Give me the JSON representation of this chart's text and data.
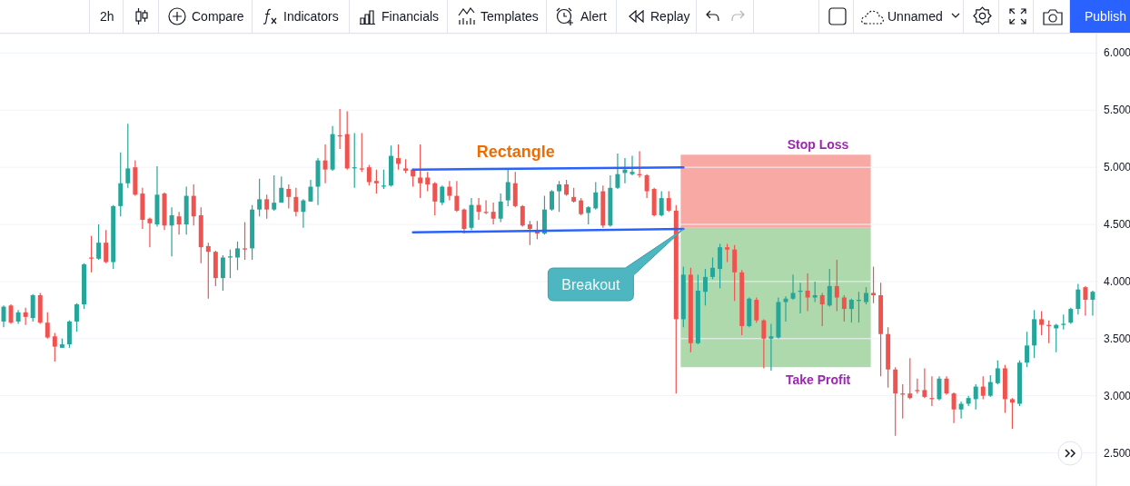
{
  "chart_data": {
    "type": "candlestick",
    "categories": [
      null,
      null,
      null,
      null,
      null,
      null,
      null,
      null,
      null,
      null,
      null,
      null,
      null,
      null,
      null,
      null,
      null,
      null,
      null,
      null,
      null,
      null,
      null,
      null,
      null,
      null,
      null,
      null,
      null,
      null,
      null,
      null,
      null,
      null,
      null,
      null,
      null,
      null,
      null,
      null,
      null,
      null,
      null,
      null,
      null,
      null,
      null,
      null,
      null,
      null,
      null,
      null,
      null,
      null,
      null,
      null,
      null,
      null,
      null,
      null,
      null,
      null,
      null,
      null,
      null,
      null,
      null,
      null,
      null,
      null,
      null,
      null,
      null,
      null,
      null,
      null,
      null,
      null,
      null,
      null,
      null,
      null,
      null,
      null,
      null,
      null,
      null,
      null,
      null,
      null,
      null,
      null,
      null,
      null,
      null,
      null,
      null,
      null,
      null,
      null,
      null,
      null,
      null,
      null,
      null,
      null,
      null,
      null,
      null,
      null,
      null,
      null,
      null,
      null,
      null,
      null,
      null,
      null,
      null,
      null,
      null,
      null,
      null,
      null,
      null,
      null,
      null,
      null,
      null,
      null,
      null,
      null,
      null,
      null,
      null,
      null,
      null,
      null,
      null,
      null,
      null,
      null,
      null,
      null,
      null,
      null,
      null,
      null,
      null,
      null
    ],
    "ohlc": [
      [
        3.65,
        3.79,
        3.6,
        3.78
      ],
      [
        3.79,
        3.8,
        3.63,
        3.64
      ],
      [
        3.65,
        3.75,
        3.63,
        3.73
      ],
      [
        3.73,
        3.77,
        3.62,
        3.69
      ],
      [
        3.68,
        3.89,
        3.65,
        3.88
      ],
      [
        3.88,
        3.9,
        3.63,
        3.64
      ],
      [
        3.64,
        3.73,
        3.5,
        3.51
      ],
      [
        3.52,
        3.55,
        3.3,
        3.43
      ],
      [
        3.42,
        3.5,
        3.42,
        3.45
      ],
      [
        3.45,
        3.66,
        3.42,
        3.65
      ],
      [
        3.65,
        3.81,
        3.56,
        3.8
      ],
      [
        3.8,
        4.16,
        3.76,
        4.15
      ],
      [
        4.21,
        4.4,
        4.08,
        4.2
      ],
      [
        4.2,
        4.5,
        4.19,
        4.34
      ],
      [
        4.34,
        4.45,
        4.16,
        4.17
      ],
      [
        4.17,
        4.67,
        4.11,
        4.66
      ],
      [
        4.66,
        5.13,
        4.57,
        4.86
      ],
      [
        4.86,
        5.38,
        4.82,
        4.99
      ],
      [
        5.0,
        5.06,
        4.75,
        4.76
      ],
      [
        4.77,
        4.82,
        4.46,
        4.54
      ],
      [
        4.55,
        4.56,
        4.3,
        4.51
      ],
      [
        4.5,
        5.01,
        4.48,
        4.76
      ],
      [
        4.77,
        4.78,
        4.45,
        4.49
      ],
      [
        4.49,
        4.65,
        4.22,
        4.58
      ],
      [
        4.57,
        4.61,
        4.41,
        4.5
      ],
      [
        4.5,
        4.83,
        4.41,
        4.75
      ],
      [
        4.75,
        4.85,
        4.49,
        4.57
      ],
      [
        4.58,
        4.65,
        4.16,
        4.3
      ],
      [
        4.31,
        4.34,
        3.85,
        4.26
      ],
      [
        4.26,
        4.27,
        3.96,
        4.03
      ],
      [
        4.03,
        4.23,
        3.92,
        4.21
      ],
      [
        4.21,
        4.28,
        4.03,
        4.22
      ],
      [
        4.21,
        4.35,
        4.1,
        4.29
      ],
      [
        4.29,
        4.52,
        4.19,
        4.28
      ],
      [
        4.29,
        4.67,
        4.19,
        4.63
      ],
      [
        4.63,
        4.9,
        4.57,
        4.72
      ],
      [
        4.72,
        4.76,
        4.55,
        4.63
      ],
      [
        4.63,
        4.93,
        4.62,
        4.69
      ],
      [
        4.69,
        4.92,
        4.69,
        4.82
      ],
      [
        4.81,
        4.85,
        4.64,
        4.74
      ],
      [
        4.74,
        4.82,
        4.57,
        4.61
      ],
      [
        4.61,
        4.72,
        4.47,
        4.71
      ],
      [
        4.7,
        4.89,
        4.7,
        4.83
      ],
      [
        4.83,
        5.08,
        4.67,
        5.06
      ],
      [
        5.06,
        5.2,
        4.86,
        4.98
      ],
      [
        4.98,
        5.36,
        4.97,
        5.29
      ],
      [
        5.28,
        5.51,
        5.16,
        5.27
      ],
      [
        5.29,
        5.49,
        4.98,
        4.99
      ],
      [
        4.99,
        5.3,
        4.82,
        5.0
      ],
      [
        4.99,
        5.3,
        4.96,
        4.98
      ],
      [
        5.0,
        5.02,
        4.84,
        4.87
      ],
      [
        4.88,
        4.98,
        4.77,
        4.86
      ],
      [
        4.83,
        4.98,
        4.81,
        4.84
      ],
      [
        4.84,
        5.19,
        4.83,
        5.1
      ],
      [
        5.08,
        5.2,
        4.98,
        5.03
      ],
      [
        4.99,
        5.07,
        4.95,
        4.97
      ],
      [
        4.98,
        4.99,
        4.83,
        4.92
      ],
      [
        4.91,
        5.2,
        4.73,
        4.86
      ],
      [
        4.91,
        4.96,
        4.79,
        4.85
      ],
      [
        4.86,
        4.87,
        4.58,
        4.7
      ],
      [
        4.69,
        4.84,
        4.67,
        4.83
      ],
      [
        4.83,
        4.88,
        4.71,
        4.75
      ],
      [
        4.75,
        4.88,
        4.61,
        4.62
      ],
      [
        4.63,
        4.64,
        4.42,
        4.46
      ],
      [
        4.47,
        4.73,
        4.45,
        4.67
      ],
      [
        4.67,
        4.73,
        4.54,
        4.61
      ],
      [
        4.61,
        4.71,
        4.59,
        4.6
      ],
      [
        4.61,
        4.69,
        4.5,
        4.55
      ],
      [
        4.55,
        4.77,
        4.52,
        4.7
      ],
      [
        4.71,
        4.98,
        4.66,
        4.87
      ],
      [
        4.86,
        4.96,
        4.65,
        4.66
      ],
      [
        4.66,
        4.67,
        4.48,
        4.49
      ],
      [
        4.5,
        4.53,
        4.32,
        4.46
      ],
      [
        4.45,
        4.53,
        4.37,
        4.42
      ],
      [
        4.42,
        4.75,
        4.41,
        4.63
      ],
      [
        4.63,
        4.8,
        4.62,
        4.79
      ],
      [
        4.79,
        4.88,
        4.61,
        4.85
      ],
      [
        4.85,
        4.89,
        4.75,
        4.76
      ],
      [
        4.74,
        4.82,
        4.69,
        4.7
      ],
      [
        4.71,
        4.73,
        4.58,
        4.59
      ],
      [
        4.6,
        4.66,
        4.5,
        4.65
      ],
      [
        4.64,
        4.87,
        4.63,
        4.78
      ],
      [
        4.79,
        4.84,
        4.47,
        4.49
      ],
      [
        4.49,
        4.93,
        4.48,
        4.82
      ],
      [
        4.82,
        5.12,
        4.81,
        4.94
      ],
      [
        4.95,
        5.08,
        4.86,
        4.98
      ],
      [
        4.94,
        5.1,
        4.93,
        4.96
      ],
      [
        4.94,
        5.14,
        4.91,
        4.93
      ],
      [
        4.93,
        4.94,
        4.73,
        4.79
      ],
      [
        4.81,
        4.82,
        4.57,
        4.58
      ],
      [
        4.58,
        4.79,
        4.57,
        4.73
      ],
      [
        4.73,
        4.79,
        4.61,
        4.62
      ],
      [
        4.62,
        4.67,
        3.02,
        3.67
      ],
      [
        3.67,
        4.13,
        3.6,
        4.06
      ],
      [
        4.06,
        4.12,
        3.38,
        3.46
      ],
      [
        3.46,
        4.06,
        3.45,
        3.92
      ],
      [
        3.91,
        4.11,
        3.79,
        4.04
      ],
      [
        4.04,
        4.21,
        4.02,
        4.12
      ],
      [
        4.11,
        4.33,
        3.94,
        4.3
      ],
      [
        4.3,
        4.33,
        4.17,
        4.28
      ],
      [
        4.28,
        4.32,
        3.83,
        4.08
      ],
      [
        4.08,
        4.1,
        3.53,
        3.61
      ],
      [
        3.61,
        3.86,
        3.6,
        3.85
      ],
      [
        3.84,
        3.86,
        3.64,
        3.66
      ],
      [
        3.66,
        3.67,
        3.24,
        3.5
      ],
      [
        3.5,
        3.63,
        3.22,
        3.52
      ],
      [
        3.51,
        3.86,
        3.5,
        3.82
      ],
      [
        3.82,
        3.87,
        3.65,
        3.85
      ],
      [
        3.85,
        4.06,
        3.84,
        3.9
      ],
      [
        3.91,
        3.99,
        3.72,
        3.92
      ],
      [
        3.92,
        4.07,
        3.74,
        3.86
      ],
      [
        3.86,
        4.0,
        3.82,
        3.88
      ],
      [
        3.88,
        3.9,
        3.61,
        3.8
      ],
      [
        3.79,
        4.11,
        3.78,
        3.96
      ],
      [
        3.96,
        4.19,
        3.74,
        3.86
      ],
      [
        3.86,
        3.88,
        3.65,
        3.76
      ],
      [
        3.76,
        3.85,
        3.64,
        3.84
      ],
      [
        3.83,
        3.91,
        3.64,
        3.84
      ],
      [
        3.82,
        3.95,
        3.8,
        3.9
      ],
      [
        3.9,
        4.13,
        3.81,
        3.88
      ],
      [
        3.88,
        3.99,
        3.17,
        3.54
      ],
      [
        3.54,
        3.6,
        3.07,
        3.23
      ],
      [
        3.23,
        3.25,
        2.65,
        3.02
      ],
      [
        3.02,
        3.1,
        2.8,
        3.01
      ],
      [
        3.02,
        3.33,
        2.97,
        2.98
      ],
      [
        3.05,
        3.15,
        3.02,
        3.04
      ],
      [
        3.05,
        3.24,
        2.98,
        2.99
      ],
      [
        2.98,
        3.17,
        2.91,
        2.97
      ],
      [
        2.97,
        3.17,
        2.96,
        3.15
      ],
      [
        3.15,
        3.17,
        3.01,
        3.02
      ],
      [
        3.02,
        3.03,
        2.76,
        2.88
      ],
      [
        2.88,
        2.95,
        2.8,
        2.93
      ],
      [
        2.93,
        3.0,
        2.91,
        2.98
      ],
      [
        2.97,
        3.1,
        2.88,
        3.08
      ],
      [
        3.08,
        3.17,
        2.97,
        3.0
      ],
      [
        3.0,
        3.18,
        2.99,
        3.12
      ],
      [
        3.11,
        3.31,
        3.1,
        3.24
      ],
      [
        3.24,
        3.27,
        2.85,
        2.97
      ],
      [
        2.97,
        2.98,
        2.71,
        2.94
      ],
      [
        2.93,
        3.31,
        2.91,
        3.29
      ],
      [
        3.29,
        3.56,
        3.25,
        3.44
      ],
      [
        3.44,
        3.75,
        3.33,
        3.67
      ],
      [
        3.67,
        3.74,
        3.53,
        3.62
      ],
      [
        3.62,
        3.66,
        3.46,
        3.61
      ],
      [
        3.59,
        3.63,
        3.38,
        3.62
      ],
      [
        3.62,
        3.71,
        3.58,
        3.63
      ],
      [
        3.64,
        3.77,
        3.63,
        3.76
      ],
      [
        3.76,
        3.98,
        3.71,
        3.93
      ],
      [
        3.95,
        3.96,
        3.7,
        3.84
      ],
      [
        3.84,
        3.92,
        3.7,
        3.91
      ]
    ],
    "colors": [
      "#26a69a",
      "#ef5350",
      "#26a69a",
      "#ef5350",
      "#26a69a",
      "#ef5350",
      "#ef5350",
      "#ef5350",
      "#26a69a",
      "#26a69a",
      "#26a69a",
      "#26a69a",
      "#ef5350",
      "#26a69a",
      "#ef5350",
      "#26a69a",
      "#26a69a",
      "#26a69a",
      "#ef5350",
      "#ef5350",
      "#ef5350",
      "#26a69a",
      "#ef5350",
      "#26a69a",
      "#ef5350",
      "#26a69a",
      "#ef5350",
      "#ef5350",
      "#ef5350",
      "#ef5350",
      "#26a69a",
      "#26a69a",
      "#26a69a",
      "#ef5350",
      "#26a69a",
      "#26a69a",
      "#ef5350",
      "#26a69a",
      "#26a69a",
      "#ef5350",
      "#ef5350",
      "#26a69a",
      "#26a69a",
      "#26a69a",
      "#ef5350",
      "#26a69a",
      "#ef5350",
      "#ef5350",
      "#26a69a",
      "#ef5350",
      "#ef5350",
      "#ef5350",
      "#26a69a",
      "#26a69a",
      "#ef5350",
      "#ef5350",
      "#ef5350",
      "#ef5350",
      "#ef5350",
      "#ef5350",
      "#26a69a",
      "#ef5350",
      "#ef5350",
      "#ef5350",
      "#26a69a",
      "#ef5350",
      "#ef5350",
      "#ef5350",
      "#26a69a",
      "#26a69a",
      "#ef5350",
      "#ef5350",
      "#ef5350",
      "#ef5350",
      "#26a69a",
      "#26a69a",
      "#26a69a",
      "#ef5350",
      "#ef5350",
      "#ef5350",
      "#26a69a",
      "#26a69a",
      "#ef5350",
      "#26a69a",
      "#26a69a",
      "#26a69a",
      "#26a69a",
      "#ef5350",
      "#ef5350",
      "#ef5350",
      "#26a69a",
      "#ef5350",
      "#ef5350",
      "#26a69a",
      "#ef5350",
      "#26a69a",
      "#26a69a",
      "#26a69a",
      "#26a69a",
      "#ef5350",
      "#ef5350",
      "#ef5350",
      "#26a69a",
      "#ef5350",
      "#ef5350",
      "#26a69a",
      "#26a69a",
      "#26a69a",
      "#26a69a",
      "#26a69a",
      "#ef5350",
      "#26a69a",
      "#ef5350",
      "#26a69a",
      "#ef5350",
      "#ef5350",
      "#26a69a",
      "#26a69a",
      "#26a69a",
      "#ef5350",
      "#ef5350",
      "#ef5350",
      "#ef5350",
      "#ef5350",
      "#ef5350",
      "#ef5350",
      "#ef5350",
      "#ef5350",
      "#26a69a",
      "#ef5350",
      "#ef5350",
      "#26a69a",
      "#26a69a",
      "#26a69a",
      "#ef5350",
      "#26a69a",
      "#26a69a",
      "#ef5350",
      "#ef5350",
      "#26a69a",
      "#26a69a",
      "#26a69a",
      "#ef5350",
      "#ef5350",
      "#26a69a",
      "#26a69a",
      "#26a69a",
      "#26a69a",
      "#ef5350",
      "#26a69a"
    ],
    "series": [
      {
        "type": "line",
        "color": "#2962ff",
        "values": [
          null,
          null,
          null,
          null,
          null,
          null,
          null,
          null,
          null,
          null,
          null,
          null,
          null,
          null,
          null,
          null,
          null,
          null,
          null,
          null,
          null,
          null,
          null,
          null,
          null,
          null,
          null,
          null,
          null,
          null,
          null,
          null,
          null,
          null,
          null,
          null,
          null,
          null,
          null,
          null,
          null,
          null,
          null,
          null,
          null,
          null,
          null,
          null,
          null,
          null,
          null,
          null,
          null,
          null,
          null,
          null,
          4.98,
          null,
          null,
          null,
          null,
          null,
          null,
          null,
          null,
          null,
          null,
          null,
          null,
          null,
          null,
          null,
          null,
          null,
          null,
          null,
          null,
          null,
          null,
          null,
          null,
          null,
          null,
          null,
          null,
          null,
          null,
          null,
          null,
          null,
          null,
          null,
          null,
          5.0,
          null,
          null,
          null,
          null,
          null,
          null,
          null,
          null,
          null,
          null,
          null,
          null,
          null,
          null,
          null,
          null,
          null,
          null,
          null,
          null,
          null,
          null,
          null,
          null,
          null,
          null,
          null,
          null,
          null,
          null,
          null,
          null,
          null,
          null,
          null,
          null,
          null,
          null,
          null,
          null,
          null,
          null,
          null,
          null,
          null,
          null,
          null,
          null,
          null,
          null,
          null,
          null,
          null,
          null,
          null,
          null
        ]
      },
      {
        "type": "line",
        "color": "#2962ff",
        "values": [
          null,
          null,
          null,
          null,
          null,
          null,
          null,
          null,
          null,
          null,
          null,
          null,
          null,
          null,
          null,
          null,
          null,
          null,
          null,
          null,
          null,
          null,
          null,
          null,
          null,
          null,
          null,
          null,
          null,
          null,
          null,
          null,
          null,
          null,
          null,
          null,
          null,
          null,
          null,
          null,
          null,
          null,
          null,
          null,
          null,
          null,
          null,
          null,
          null,
          null,
          null,
          null,
          null,
          null,
          null,
          null,
          4.43,
          null,
          null,
          null,
          null,
          null,
          null,
          null,
          null,
          null,
          null,
          null,
          null,
          null,
          null,
          null,
          null,
          null,
          null,
          null,
          null,
          null,
          null,
          null,
          null,
          null,
          null,
          null,
          null,
          null,
          null,
          null,
          null,
          null,
          null,
          null,
          null,
          4.46,
          null,
          null,
          null,
          null,
          null,
          null,
          null,
          null,
          null,
          null,
          null,
          null,
          null,
          null,
          null,
          null,
          null,
          null,
          null,
          null,
          null,
          null,
          null,
          null,
          null,
          null,
          null,
          null,
          null,
          null,
          null,
          null,
          null,
          null,
          null,
          null,
          null,
          null,
          null,
          null,
          null,
          null,
          null,
          null,
          null,
          null,
          null,
          null,
          null,
          null,
          null,
          null,
          null,
          null,
          null,
          null
        ]
      }
    ],
    "bands": [
      {
        "axis": "y",
        "from": 4.47,
        "to": 5.11,
        "label": "Stop Loss",
        "color": "#f8a9a4"
      },
      {
        "axis": "y",
        "from": 3.25,
        "to": 4.47,
        "label": "Take Profit",
        "color": "#add9ad"
      }
    ],
    "annotations": [
      "Rectangle",
      "Breakout",
      "2h",
      "Compare",
      "Indicators",
      "Financials",
      "Templates",
      "Alert",
      "Replay",
      "Unnamed",
      "Publish"
    ],
    "ylim": [
      2.21,
      6.17
    ],
    "yticks": [
      {
        "value": 6,
        "label": "6.000"
      },
      {
        "value": 5.5,
        "label": "5.500"
      },
      {
        "value": 5,
        "label": "5.000"
      },
      {
        "value": 4.5,
        "label": "4.500"
      },
      {
        "value": 4,
        "label": "4.000"
      },
      {
        "value": 3.5,
        "label": "3.500"
      },
      {
        "value": 3,
        "label": "3.000"
      },
      {
        "value": 2.5,
        "label": "2.500"
      }
    ],
    "tick_labels": "y",
    "grid": "y"
  }
}
